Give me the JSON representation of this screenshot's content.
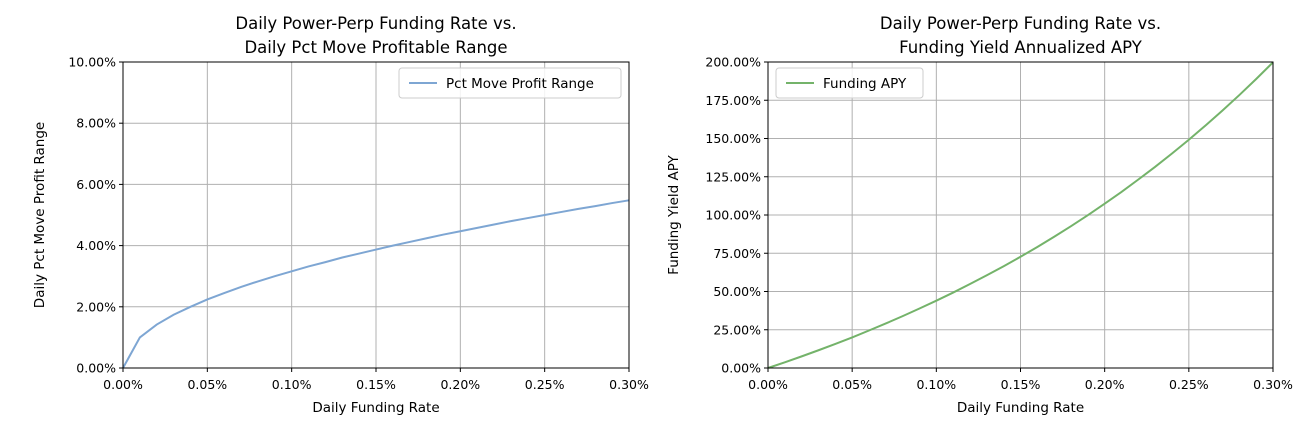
{
  "chart_data": [
    {
      "type": "line",
      "title": [
        "Daily Power-Perp Funding Rate vs.",
        "Daily Pct Move Profitable Range"
      ],
      "xlabel": "Daily Funding Rate",
      "ylabel": "Daily Pct Move Profit Range",
      "xlim": [
        0,
        0.3
      ],
      "ylim": [
        0,
        10
      ],
      "x_ticks": [
        "0.00%",
        "0.05%",
        "0.10%",
        "0.15%",
        "0.20%",
        "0.25%",
        "0.30%"
      ],
      "y_ticks": [
        "0.00%",
        "2.00%",
        "4.00%",
        "6.00%",
        "8.00%",
        "10.00%"
      ],
      "grid": true,
      "legend_position": "upper-right",
      "series": [
        {
          "name": "Pct Move Profit Range",
          "color": "#7ea6d3",
          "x": [
            0,
            0.01,
            0.02,
            0.03,
            0.04,
            0.05,
            0.06,
            0.07,
            0.08,
            0.09,
            0.1,
            0.11,
            0.12,
            0.13,
            0.14,
            0.15,
            0.16,
            0.17,
            0.18,
            0.19,
            0.2,
            0.21,
            0.22,
            0.23,
            0.24,
            0.25,
            0.26,
            0.27,
            0.28,
            0.29,
            0.3
          ],
          "y": [
            0,
            1.0,
            1.42,
            1.74,
            2.0,
            2.24,
            2.45,
            2.65,
            2.83,
            3.0,
            3.16,
            3.32,
            3.46,
            3.61,
            3.74,
            3.87,
            4.0,
            4.12,
            4.24,
            4.36,
            4.47,
            4.58,
            4.69,
            4.8,
            4.9,
            5.0,
            5.1,
            5.2,
            5.29,
            5.39,
            5.48
          ]
        }
      ]
    },
    {
      "type": "line",
      "title": [
        "Daily Power-Perp Funding Rate vs.",
        "Funding Yield Annualized APY"
      ],
      "xlabel": "Daily Funding Rate",
      "ylabel": "Funding Yield APY",
      "xlim": [
        0,
        0.3
      ],
      "ylim": [
        0,
        200
      ],
      "x_ticks": [
        "0.00%",
        "0.05%",
        "0.10%",
        "0.15%",
        "0.20%",
        "0.25%",
        "0.30%"
      ],
      "y_ticks": [
        "0.00%",
        "25.00%",
        "50.00%",
        "75.00%",
        "100.00%",
        "125.00%",
        "150.00%",
        "175.00%",
        "200.00%"
      ],
      "grid": true,
      "legend_position": "upper-left",
      "series": [
        {
          "name": "Funding APY",
          "color": "#74b36a",
          "x": [
            0,
            0.01,
            0.02,
            0.03,
            0.04,
            0.05,
            0.06,
            0.07,
            0.08,
            0.09,
            0.1,
            0.11,
            0.12,
            0.13,
            0.14,
            0.15,
            0.16,
            0.17,
            0.18,
            0.19,
            0.2,
            0.21,
            0.22,
            0.23,
            0.24,
            0.25,
            0.26,
            0.27,
            0.28,
            0.29,
            0.3
          ],
          "y": [
            0,
            3.7,
            7.6,
            11.6,
            15.7,
            20.0,
            24.5,
            29.1,
            33.9,
            38.9,
            44.0,
            49.3,
            54.9,
            60.6,
            66.5,
            72.7,
            79.1,
            85.8,
            92.7,
            99.9,
            107.4,
            115.1,
            123.2,
            131.5,
            140.2,
            149.2,
            158.6,
            168.3,
            178.4,
            188.9,
            199.8
          ]
        }
      ]
    }
  ]
}
